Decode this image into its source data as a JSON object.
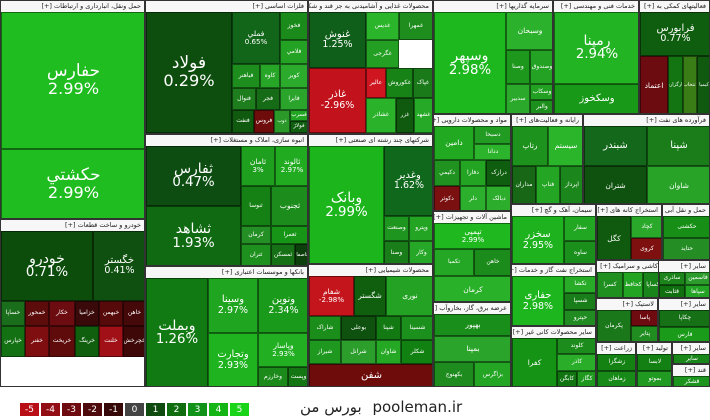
{
  "brand": {
    "site": "pooleman.ir",
    "label": "بورس من"
  },
  "legend": [
    {
      "label": "-5",
      "color": "#b80f16"
    },
    {
      "label": "-4",
      "color": "#930d14"
    },
    {
      "label": "-3",
      "color": "#6d0b10"
    },
    {
      "label": "-2",
      "color": "#4f0a0d"
    },
    {
      "label": "-1",
      "color": "#370808"
    },
    {
      "label": "0",
      "color": "#444444"
    },
    {
      "label": "1",
      "color": "#0f4a0f"
    },
    {
      "label": "2",
      "color": "#106d10"
    },
    {
      "label": "3",
      "color": "#11931a"
    },
    {
      "label": "4",
      "color": "#14b515"
    },
    {
      "label": "5",
      "color": "#19d419"
    }
  ],
  "sectors": [
    {
      "id": "s1",
      "title": "حمل ونقل، انبارداری و ارتباطات [+]",
      "tiles": [
        {
          "name": "حفارس",
          "pct": "2.99%",
          "color": "#1fbd1f"
        },
        {
          "name": "حکشتي",
          "pct": "2.99%",
          "color": "#1fbd1f"
        }
      ]
    },
    {
      "id": "s2",
      "title": "فلزات اساسی [+]",
      "tiles": [
        {
          "name": "فولاد",
          "pct": "0.29%",
          "color": "#0d4d0d"
        },
        {
          "name": "فملي",
          "pct": "0.65%",
          "color": "#12661a"
        },
        {
          "name": "فخوز",
          "pct": "",
          "color": "#1a8a1a"
        },
        {
          "name": "فلامي",
          "pct": "",
          "color": "#24a224"
        },
        {
          "name": "فباهنر",
          "pct": "",
          "color": "#1d8e1d"
        },
        {
          "name": "کاوه",
          "pct": "",
          "color": "#27a527"
        },
        {
          "name": "کویر",
          "pct": "",
          "color": "#2baa2b"
        },
        {
          "name": "فنوال",
          "pct": "",
          "color": "#1e7e1e"
        },
        {
          "name": "فجر",
          "pct": "",
          "color": "#166b16"
        },
        {
          "name": "فايرا",
          "pct": "",
          "color": "#2aa42a"
        },
        {
          "name": "فنفت",
          "pct": "",
          "color": "#0f5a0f"
        },
        {
          "name": "فروس",
          "pct": "",
          "color": "#6e0b0b"
        },
        {
          "name": "ذوب",
          "pct": "",
          "color": "#2a992a"
        },
        {
          "name": "فسرب",
          "pct": "",
          "color": "#22a522"
        },
        {
          "name": "فولاژ",
          "pct": "",
          "color": "#115f11"
        }
      ]
    },
    {
      "id": "s3",
      "title": "محصولات غذایی و آشامیدنی به جز قند و شکر [+]",
      "tiles": [
        {
          "name": "غنوش",
          "pct": "1.25%",
          "color": "#0f5e1a"
        },
        {
          "name": "غدیس",
          "pct": "",
          "color": "#2bb52b"
        },
        {
          "name": "غمهرا",
          "pct": "",
          "color": "#1e8d1e"
        },
        {
          "name": "غگرجی",
          "pct": "",
          "color": "#239f23"
        },
        {
          "name": "غاذر",
          "pct": "-2.96%",
          "color": "#c2131c"
        },
        {
          "name": "عالیر",
          "pct": "",
          "color": "#cf1520"
        },
        {
          "name": "غکوروش",
          "pct": "",
          "color": "#178317"
        },
        {
          "name": "غپاک",
          "pct": "",
          "color": "#1a7a1a"
        },
        {
          "name": "غشاذر",
          "pct": "",
          "color": "#2ab22a"
        },
        {
          "name": "غزر",
          "pct": "",
          "color": "#0f5a0f"
        },
        {
          "name": "غشهد",
          "pct": "",
          "color": "#26a926"
        }
      ]
    },
    {
      "id": "s4",
      "title": "سرمایه گذاریها [+]",
      "tiles": [
        {
          "name": "وسپهر",
          "pct": "2.98%",
          "color": "#1db81d"
        },
        {
          "name": "وسبحان",
          "pct": "",
          "color": "#2bb12b"
        },
        {
          "name": "وصنا",
          "pct": "",
          "color": "#1d981d"
        },
        {
          "name": "وصندوق",
          "pct": "",
          "color": "#23a223"
        },
        {
          "name": "سدبير",
          "pct": "",
          "color": "#2aa92a"
        },
        {
          "name": "وسکاب",
          "pct": "",
          "color": "#22a022"
        },
        {
          "name": "سلیم",
          "pct": "",
          "color": "#189818"
        },
        {
          "name": "والبر",
          "pct": "",
          "color": "#1d8f1d"
        }
      ]
    },
    {
      "id": "s5",
      "title": "خدمات فنی و مهندسی [+]",
      "tiles": [
        {
          "name": "رمپنا",
          "pct": "2.94%",
          "color": "#22b422"
        },
        {
          "name": "وسکخوز",
          "pct": "",
          "color": "#189918"
        }
      ]
    },
    {
      "id": "s6",
      "title": "فعالیتهای کمکی به [+]",
      "tiles": [
        {
          "name": "فرابورس",
          "pct": "0.77%",
          "color": "#0f5e0f"
        },
        {
          "name": "اعتماد",
          "pct": "",
          "color": "#6d0c10"
        },
        {
          "name": "کارگزاری",
          "pct": "",
          "color": "#127512"
        },
        {
          "name": "انتخاب",
          "pct": "",
          "color": "#3a7d16"
        },
        {
          "name": "کیمیا",
          "pct": "",
          "color": "#105a10"
        }
      ]
    },
    {
      "id": "s7",
      "title": "انبوه سازی، املاک و مستغلات [+]",
      "tiles": [
        {
          "name": "ثفارس",
          "pct": "0.47%",
          "color": "#0e4d12"
        },
        {
          "name": "ثشاهد",
          "pct": "1.93%",
          "color": "#0f6a12"
        },
        {
          "name": "ثامان",
          "pct": "3%",
          "color": "#1ea01e"
        },
        {
          "name": "ثالوند",
          "pct": "2.97%",
          "color": "#20ab20"
        },
        {
          "name": "ثنوسا",
          "pct": "",
          "color": "#158115"
        },
        {
          "name": "ثجنوب",
          "pct": "",
          "color": "#1c8c1c"
        },
        {
          "name": "کرمان",
          "pct": "",
          "color": "#248f24"
        },
        {
          "name": "ثعمرا",
          "pct": "",
          "color": "#179517"
        },
        {
          "name": "ثتران",
          "pct": "",
          "color": "#1e901e"
        },
        {
          "name": "ثمسکن",
          "pct": "",
          "color": "#167116"
        },
        {
          "name": "ثاصفا",
          "pct": "",
          "color": "#0d3f0d"
        }
      ]
    },
    {
      "id": "s8",
      "title": "شرکتهای چند رشته ای صنعتی [+]",
      "tiles": [
        {
          "name": "وبانک",
          "pct": "2.99%",
          "color": "#1cb61c"
        },
        {
          "name": "وغدیر",
          "pct": "1.62%",
          "color": "#0f681b"
        },
        {
          "name": "وصنعت",
          "pct": "",
          "color": "#1e951e"
        },
        {
          "name": "وپترو",
          "pct": "",
          "color": "#23a523"
        },
        {
          "name": "وصنا",
          "pct": "",
          "color": "#197d19"
        },
        {
          "name": "وکار",
          "pct": "",
          "color": "#27a727"
        }
      ]
    },
    {
      "id": "s9",
      "title": "مواد و محصولات دارویی [+]",
      "tiles": [
        {
          "name": "دامين",
          "pct": "",
          "color": "#21aa21"
        },
        {
          "name": "دسبحا",
          "pct": "",
          "color": "#229b22"
        },
        {
          "name": "ددانا",
          "pct": "",
          "color": "#2cb42c"
        },
        {
          "name": "دکيمي",
          "pct": "",
          "color": "#1f921f"
        },
        {
          "name": "دفارا",
          "pct": "",
          "color": "#23a523"
        },
        {
          "name": "درازک",
          "pct": "",
          "color": "#0f5e0f"
        },
        {
          "name": "دکوثر",
          "pct": "",
          "color": "#7a1010"
        },
        {
          "name": "دلر",
          "pct": "",
          "color": "#2caf2c"
        },
        {
          "name": "دبالک",
          "pct": "",
          "color": "#2cad2c"
        }
      ]
    },
    {
      "id": "s10",
      "title": "رایانه و فعالیت‌های [+]",
      "tiles": [
        {
          "name": "رتاپ",
          "pct": "",
          "color": "#1d921d"
        },
        {
          "name": "سیستم",
          "pct": "",
          "color": "#2bb52b"
        },
        {
          "name": "مداران",
          "pct": "",
          "color": "#176717"
        },
        {
          "name": "فناپ",
          "pct": "",
          "color": "#24a524"
        },
        {
          "name": "اپرداز",
          "pct": "",
          "color": "#1b861b"
        }
      ]
    },
    {
      "id": "s11",
      "title": "فرآورده های نفت [+]",
      "tiles": [
        {
          "name": "شبندر",
          "pct": "",
          "color": "#14681b"
        },
        {
          "name": "شپنا",
          "pct": "",
          "color": "#1a7d1a"
        },
        {
          "name": "شتران",
          "pct": "",
          "color": "#0f520f"
        },
        {
          "name": "شاوان",
          "pct": "",
          "color": "#28a328"
        }
      ]
    },
    {
      "id": "s12",
      "title": "ماشین آلات و تجهیزات [+]",
      "tiles": [
        {
          "name": "تپمپی",
          "pct": "2.99%",
          "color": "#1fb91f"
        },
        {
          "name": "تکمبا",
          "pct": "",
          "color": "#24a724"
        },
        {
          "name": "خاهن",
          "pct": "",
          "color": "#1b8b1b"
        },
        {
          "name": "کرمان",
          "pct": "",
          "color": "#2ab12a"
        }
      ]
    },
    {
      "id": "s13",
      "title": "سیمان، آهک و گچ [+]",
      "tiles": [
        {
          "name": "سخزر",
          "pct": "2.95%",
          "color": "#1eb21e"
        },
        {
          "name": "سفار",
          "pct": "",
          "color": "#22a722"
        },
        {
          "name": "ساوه",
          "pct": "",
          "color": "#1b8f1b"
        }
      ]
    },
    {
      "id": "s14",
      "title": "استخراج کانه های [+]",
      "tiles": [
        {
          "name": "کگل",
          "pct": "",
          "color": "#0f5a0f"
        },
        {
          "name": "کچاد",
          "pct": "",
          "color": "#2aa82a"
        },
        {
          "name": "کروی",
          "pct": "",
          "color": "#7f1010"
        }
      ]
    },
    {
      "id": "s15",
      "title": "حمل و نقل آبی [+]",
      "tiles": [
        {
          "name": "حکشتی",
          "pct": "",
          "color": "#178f17"
        },
        {
          "name": "حتاید",
          "pct": "",
          "color": "#248d24"
        }
      ]
    },
    {
      "id": "s16",
      "title": "کاشی و سرامیک [+]",
      "tiles": [
        {
          "name": "کسرا",
          "pct": "",
          "color": "#1f8f1f"
        },
        {
          "name": "کحافظ",
          "pct": "",
          "color": "#23a423"
        },
        {
          "name": "کساپا",
          "pct": "",
          "color": "#198419"
        }
      ]
    },
    {
      "id": "s17",
      "title": "خودرو و ساخت قطعات [+]",
      "tiles": [
        {
          "name": "خودرو",
          "pct": "0.71%",
          "color": "#0c4d0c"
        },
        {
          "name": "خگستر",
          "pct": "0.41%",
          "color": "#0f4f0f"
        },
        {
          "name": "خساپا",
          "pct": "",
          "color": "#1a6d1a"
        },
        {
          "name": "خمحور",
          "pct": "",
          "color": "#5d0c0c"
        },
        {
          "name": "خکار",
          "pct": "",
          "color": "#6d0c10"
        },
        {
          "name": "خزامیا",
          "pct": "",
          "color": "#3a0a0a"
        },
        {
          "name": "خبهمن",
          "pct": "",
          "color": "#560a0a"
        },
        {
          "name": "خاهن",
          "pct": "",
          "color": "#460909"
        },
        {
          "name": "خپارس",
          "pct": "",
          "color": "#137013"
        },
        {
          "name": "خفنر",
          "pct": "",
          "color": "#7e0e10"
        },
        {
          "name": "خریخت",
          "pct": "",
          "color": "#5f0b0b"
        },
        {
          "name": "خرینگ",
          "pct": "",
          "color": "#0f5f0f"
        },
        {
          "name": "خلنت",
          "pct": "",
          "color": "#a01016"
        },
        {
          "name": "خچرخش",
          "pct": "",
          "color": "#3e0808"
        }
      ]
    },
    {
      "id": "s18",
      "title": "بانکها و موسسات اعتباری [+]",
      "tiles": [
        {
          "name": "وبملت",
          "pct": "1.26%",
          "color": "#127a12"
        },
        {
          "name": "وسینا",
          "pct": "2.97%",
          "color": "#1fa51f"
        },
        {
          "name": "ونوین",
          "pct": "2.34%",
          "color": "#1a9a1a"
        },
        {
          "name": "وتجارت",
          "pct": "2.93%",
          "color": "#1fb31f"
        },
        {
          "name": "وپاسار",
          "pct": "2.93%",
          "color": "#22af22"
        },
        {
          "name": "وخارزم",
          "pct": "",
          "color": "#1b8a1b"
        },
        {
          "name": "وپست",
          "pct": "",
          "color": "#137613"
        }
      ]
    },
    {
      "id": "s19",
      "title": "محصولات شیمیایی [+]",
      "tiles": [
        {
          "name": "شفام",
          "pct": "-2.98%",
          "color": "#c4141c"
        },
        {
          "name": "شگستر",
          "pct": "",
          "color": "#0f5f0f"
        },
        {
          "name": "نوری",
          "pct": "",
          "color": "#23a223"
        },
        {
          "name": "شاراک",
          "pct": "",
          "color": "#1a8d1a"
        },
        {
          "name": "بوعلی",
          "pct": "",
          "color": "#0f520f"
        },
        {
          "name": "شپنا",
          "pct": "",
          "color": "#137a13"
        },
        {
          "name": "شسینا",
          "pct": "",
          "color": "#1c901c"
        },
        {
          "name": "شیراز",
          "pct": "",
          "color": "#1e981e"
        },
        {
          "name": "شرانل",
          "pct": "",
          "color": "#2b9e2b"
        },
        {
          "name": "شاوان",
          "pct": "",
          "color": "#25a925"
        },
        {
          "name": "شکلر",
          "pct": "",
          "color": "#118111"
        },
        {
          "name": "شفن",
          "pct": "",
          "color": "#6e0b0b"
        }
      ]
    },
    {
      "id": "s20",
      "title": "عرضه برق، گاز، بخاروآب [+]",
      "tiles": [
        {
          "name": "بهپور",
          "pct": "",
          "color": "#1a8e1a"
        },
        {
          "name": "بمپنا",
          "pct": "",
          "color": "#2aa42a"
        },
        {
          "name": "بکهنوج",
          "pct": "",
          "color": "#1e8b1e"
        },
        {
          "name": "بزاگرس",
          "pct": "",
          "color": "#24a524"
        }
      ]
    },
    {
      "id": "s21",
      "title": "استخراج نفت گاز و خدمات [+]",
      "tiles": [
        {
          "name": "حفاری",
          "pct": "2.98%",
          "color": "#1eb61e"
        },
        {
          "name": "تکشا",
          "pct": "",
          "color": "#28ac28"
        },
        {
          "name": "شسپا",
          "pct": "",
          "color": "#197e19"
        },
        {
          "name": "حپترو",
          "pct": "",
          "color": "#208b20"
        }
      ]
    },
    {
      "id": "s22",
      "title": "سایر محصولات کانی غیر [+]",
      "tiles": [
        {
          "name": "کفرا",
          "pct": "",
          "color": "#159315"
        },
        {
          "name": "کلوند",
          "pct": "",
          "color": "#1c8d1c"
        },
        {
          "name": "کاذر",
          "pct": "",
          "color": "#2aae2a"
        },
        {
          "name": "کابگن",
          "pct": "",
          "color": "#107510"
        },
        {
          "name": "کگاز",
          "pct": "",
          "color": "#1e991e"
        }
      ]
    },
    {
      "id": "s23",
      "title": "لاستیک [+]",
      "tiles": [
        {
          "name": "پکرمان",
          "pct": "",
          "color": "#1a781a"
        },
        {
          "name": "پاسا",
          "pct": "",
          "color": "#6d0b10"
        },
        {
          "name": "پتایر",
          "pct": "",
          "color": "#1f8d1f"
        },
        {
          "name": "پکویر",
          "pct": "",
          "color": "#24a024"
        }
      ]
    },
    {
      "id": "s24",
      "title": "سایر [+]",
      "tiles": [
        {
          "name": "ساذری",
          "pct": "",
          "color": "#1b851b"
        },
        {
          "name": "فاسمین",
          "pct": "",
          "color": "#2b9b2b"
        },
        {
          "name": "قثابت",
          "pct": "",
          "color": "#107010"
        },
        {
          "name": "سپاها",
          "pct": "",
          "color": "#24a424"
        }
      ]
    },
    {
      "id": "s25",
      "title": "سایر [+]",
      "tiles": [
        {
          "name": "چکاپا",
          "pct": "",
          "color": "#167016"
        },
        {
          "name": "فارس",
          "pct": "",
          "color": "#1a9b1a"
        }
      ]
    },
    {
      "id": "s26",
      "title": "زراعت [+]",
      "tiles": [
        {
          "name": "زشگزا",
          "pct": "",
          "color": "#138213"
        },
        {
          "name": "زماهان",
          "pct": "",
          "color": "#188a18"
        }
      ]
    },
    {
      "id": "s27",
      "title": "تولید [+]",
      "tiles": [
        {
          "name": "لابسا",
          "pct": "",
          "color": "#128012"
        },
        {
          "name": "بموتو",
          "pct": "",
          "color": "#209a20"
        }
      ]
    },
    {
      "id": "s28",
      "title": "سایر [+]",
      "tiles": [
        {
          "name": "سایر",
          "pct": "",
          "color": "#198619"
        }
      ]
    },
    {
      "id": "s29",
      "title": "قند [+]",
      "tiles": [
        {
          "name": "قشکر",
          "pct": "",
          "color": "#1d941d"
        }
      ]
    }
  ]
}
